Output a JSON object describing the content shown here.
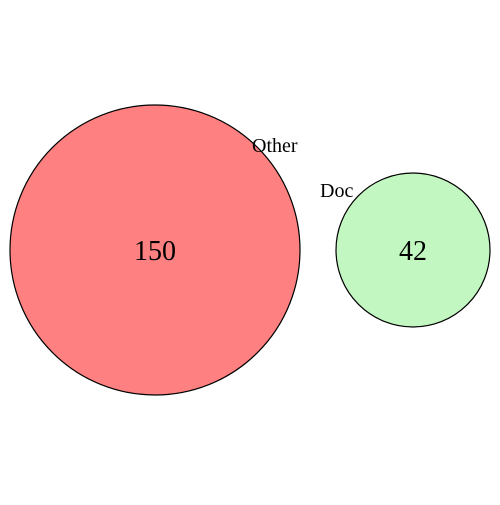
{
  "venn": {
    "sets": [
      {
        "name": "Other",
        "count": "150",
        "color": "#ff8080"
      },
      {
        "name": "Doc",
        "count": "42",
        "color": "#c3f7c1"
      }
    ],
    "outline_color": "#000000"
  }
}
